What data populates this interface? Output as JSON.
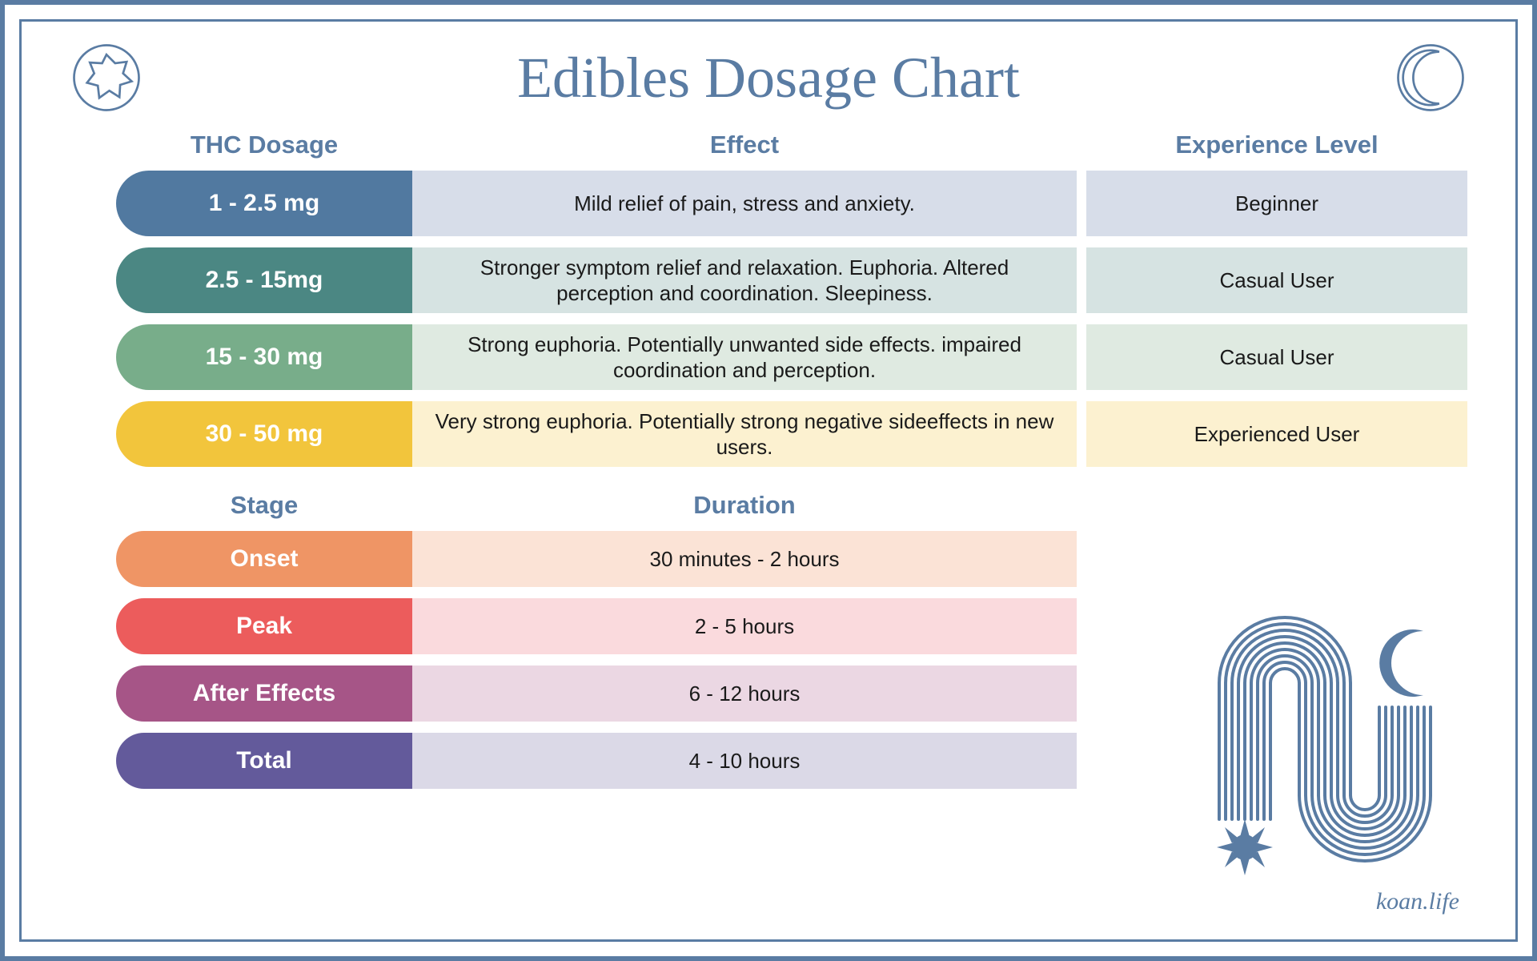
{
  "title": "Edibles Dosage Chart",
  "title_color": "#5a7ca3",
  "title_fontsize": 72,
  "border_color": "#5a7ca3",
  "text_color": "#1a1a1a",
  "header_fontsize": 31,
  "body_fontsize": 26,
  "pill_fontsize": 30,
  "attribution": "koan.life",
  "dosage_table": {
    "columns": [
      "THC Dosage",
      "Effect",
      "Experience Level"
    ],
    "rows": [
      {
        "dosage": "1 - 2.5 mg",
        "effect": "Mild relief of pain, stress and anxiety.",
        "level": "Beginner",
        "pill_color": "#5179a0",
        "effect_bg": "#d7dde9",
        "level_bg": "#d7dde9"
      },
      {
        "dosage": "2.5 - 15mg",
        "effect": "Stronger symptom relief and relaxation. Euphoria. Altered perception and coordination. Sleepiness.",
        "level": "Casual User",
        "pill_color": "#4b8783",
        "effect_bg": "#d6e3e2",
        "level_bg": "#d6e3e2"
      },
      {
        "dosage": "15 - 30 mg",
        "effect": "Strong euphoria. Potentially unwanted side effects. impaired coordination and perception.",
        "level": "Casual User",
        "pill_color": "#78ad8a",
        "effect_bg": "#dfeae1",
        "level_bg": "#dfeae1"
      },
      {
        "dosage": "30 - 50 mg",
        "effect": "Very strong euphoria. Potentially strong negative sideeffects in new users.",
        "level": "Experienced User",
        "pill_color": "#f2c53c",
        "effect_bg": "#fcf1d0",
        "level_bg": "#fcf1d0"
      }
    ]
  },
  "duration_table": {
    "columns": [
      "Stage",
      "Duration"
    ],
    "rows": [
      {
        "stage": "Onset",
        "duration": "30 minutes - 2 hours",
        "pill_color": "#ef9565",
        "bg": "#fbe3d6"
      },
      {
        "stage": "Peak",
        "duration": "2 - 5 hours",
        "pill_color": "#ec5c5c",
        "bg": "#fadadd"
      },
      {
        "stage": "After Effects",
        "duration": "6 - 12 hours",
        "pill_color": "#a65587",
        "bg": "#ebd7e3"
      },
      {
        "stage": "Total",
        "duration": "4 - 10 hours",
        "pill_color": "#635a9b",
        "bg": "#dbd9e7"
      }
    ]
  },
  "icons": {
    "top_left": "sun-outline-icon",
    "top_right": "moon-outline-icon",
    "bottom_right": "arch-sun-moon-lineart"
  }
}
